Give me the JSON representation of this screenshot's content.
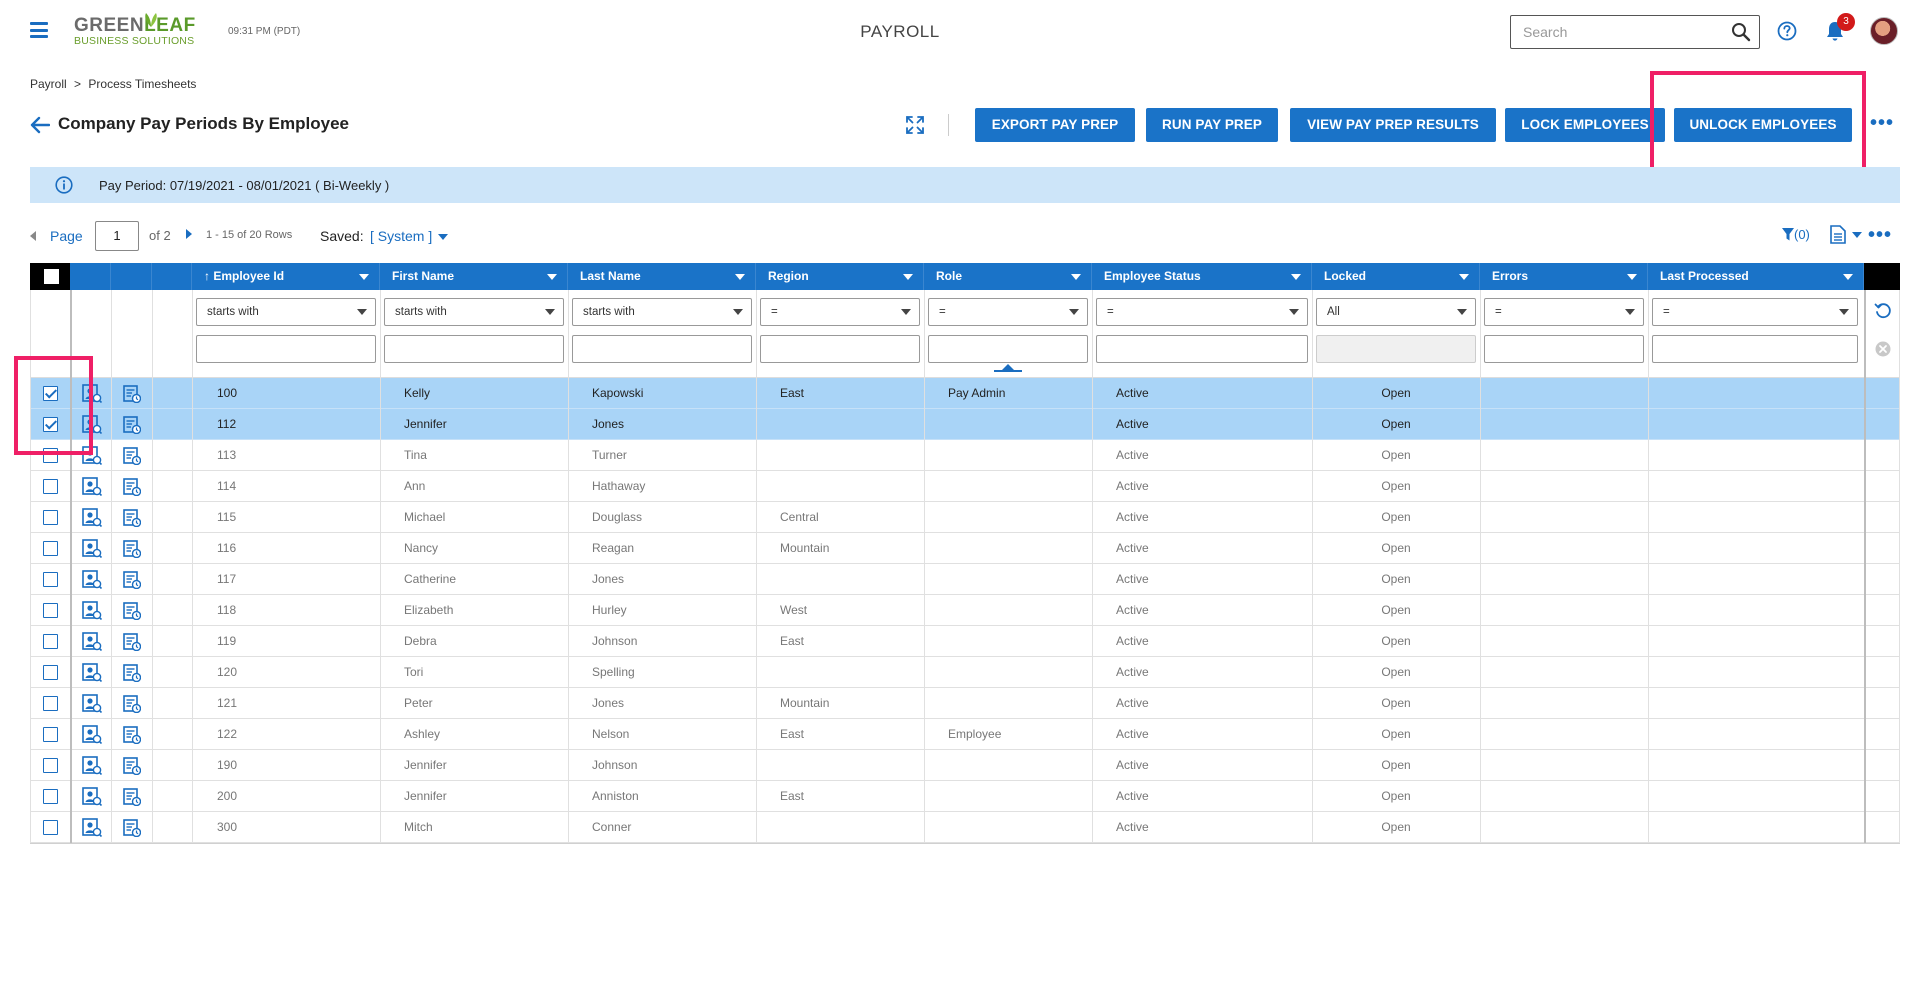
{
  "header": {
    "logo_line1_a": "GREEN",
    "logo_line1_b": "LEAF",
    "logo_line2": "BUSINESS SOLUTIONS",
    "clock": "09:31 PM (PDT)",
    "app_title": "PAYROLL",
    "search_placeholder": "Search",
    "notification_count": "3"
  },
  "breadcrumb": {
    "root": "Payroll",
    "separator": ">",
    "current": "Process Timesheets"
  },
  "page": {
    "title": "Company Pay Periods By Employee"
  },
  "toolbar": {
    "export_label": "EXPORT PAY PREP",
    "run_label": "RUN PAY PREP",
    "view_label": "VIEW PAY PREP RESULTS",
    "lock_label": "LOCK EMPLOYEES",
    "unlock_label": "UNLOCK EMPLOYEES",
    "more": "•••"
  },
  "info_bar": {
    "text": "Pay Period: 07/19/2021 - 08/01/2021 ( Bi-Weekly )"
  },
  "pager": {
    "page_label": "Page",
    "page_value": "1",
    "of_label": "of 2",
    "rows_label": "1 - 15 of 20 Rows",
    "saved_label": "Saved:",
    "saved_value": "[ System ]",
    "filter_count": "(0)",
    "more": "•••"
  },
  "columns": {
    "employee_id": "Employee Id",
    "first_name": "First Name",
    "last_name": "Last Name",
    "region": "Region",
    "role": "Role",
    "employee_status": "Employee Status",
    "locked": "Locked",
    "errors": "Errors",
    "last_processed": "Last Processed"
  },
  "filters": {
    "employee_id": "starts with",
    "first_name": "starts with",
    "last_name": "starts with",
    "region": "=",
    "role": "=",
    "employee_status": "=",
    "locked": "All",
    "errors": "=",
    "last_processed": "="
  },
  "rows": [
    {
      "id": "100",
      "first": "Kelly",
      "last": "Kapowski",
      "region": "East",
      "role": "Pay Admin",
      "status": "Active",
      "locked": "Open",
      "selected": true
    },
    {
      "id": "112",
      "first": "Jennifer",
      "last": "Jones",
      "region": "",
      "role": "",
      "status": "Active",
      "locked": "Open",
      "selected": true
    },
    {
      "id": "113",
      "first": "Tina",
      "last": "Turner",
      "region": "",
      "role": "",
      "status": "Active",
      "locked": "Open",
      "selected": false
    },
    {
      "id": "114",
      "first": "Ann",
      "last": "Hathaway",
      "region": "",
      "role": "",
      "status": "Active",
      "locked": "Open",
      "selected": false
    },
    {
      "id": "115",
      "first": "Michael",
      "last": "Douglass",
      "region": "Central",
      "role": "",
      "status": "Active",
      "locked": "Open",
      "selected": false
    },
    {
      "id": "116",
      "first": "Nancy",
      "last": "Reagan",
      "region": "Mountain",
      "role": "",
      "status": "Active",
      "locked": "Open",
      "selected": false
    },
    {
      "id": "117",
      "first": "Catherine",
      "last": "Jones",
      "region": "",
      "role": "",
      "status": "Active",
      "locked": "Open",
      "selected": false
    },
    {
      "id": "118",
      "first": "Elizabeth",
      "last": "Hurley",
      "region": "West",
      "role": "",
      "status": "Active",
      "locked": "Open",
      "selected": false
    },
    {
      "id": "119",
      "first": "Debra",
      "last": "Johnson",
      "region": "East",
      "role": "",
      "status": "Active",
      "locked": "Open",
      "selected": false
    },
    {
      "id": "120",
      "first": "Tori",
      "last": "Spelling",
      "region": "",
      "role": "",
      "status": "Active",
      "locked": "Open",
      "selected": false
    },
    {
      "id": "121",
      "first": "Peter",
      "last": "Jones",
      "region": "Mountain",
      "role": "",
      "status": "Active",
      "locked": "Open",
      "selected": false
    },
    {
      "id": "122",
      "first": "Ashley",
      "last": "Nelson",
      "region": "East",
      "role": "Employee",
      "status": "Active",
      "locked": "Open",
      "selected": false
    },
    {
      "id": "190",
      "first": "Jennifer",
      "last": "Johnson",
      "region": "",
      "role": "",
      "status": "Active",
      "locked": "Open",
      "selected": false
    },
    {
      "id": "200",
      "first": "Jennifer",
      "last": "Anniston",
      "region": "East",
      "role": "",
      "status": "Active",
      "locked": "Open",
      "selected": false
    },
    {
      "id": "300",
      "first": "Mitch",
      "last": "Conner",
      "region": "",
      "role": "",
      "status": "Active",
      "locked": "Open",
      "selected": false
    }
  ],
  "colors": {
    "accent": "#1a73c8",
    "selected_row": "#a9d4f7",
    "info_bar": "#cde5f9",
    "highlight": "#ef1f66",
    "badge": "#d21a1a"
  },
  "icons": {
    "menu": "hamburger-icon",
    "search": "search-icon",
    "help": "help-icon",
    "notifications": "bell-icon",
    "back": "back-arrow-icon",
    "expand": "expand-icon",
    "info": "info-icon",
    "filter": "filter-icon",
    "export_doc": "document-icon",
    "row_employee": "employee-profile-icon",
    "row_timesheet": "timesheet-icon",
    "reset": "reset-icon",
    "clear": "clear-icon"
  }
}
